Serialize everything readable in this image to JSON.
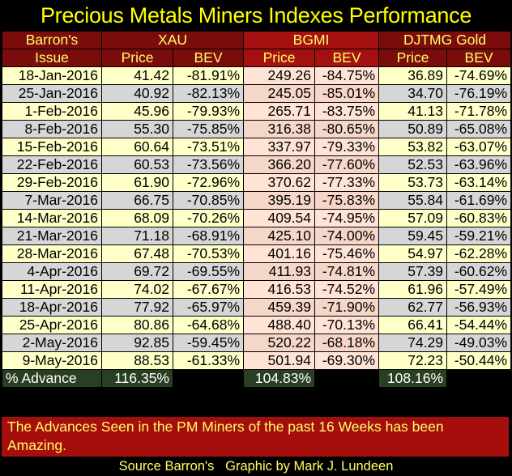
{
  "title": "Precious Metals Miners Indexes Performance",
  "header": {
    "col1_line1": "Barron's",
    "col1_line2": "Issue",
    "groups": [
      "XAU",
      "BGMI",
      "DJTMG Gold"
    ],
    "sub": [
      "Price",
      "BEV",
      "Price",
      "BEV",
      "Price",
      "BEV"
    ]
  },
  "rows": [
    [
      "18-Jan-2016",
      "41.42",
      "-81.91%",
      "249.26",
      "-84.75%",
      "36.89",
      "-74.69%"
    ],
    [
      "25-Jan-2016",
      "40.92",
      "-82.13%",
      "245.05",
      "-85.01%",
      "34.70",
      "-76.19%"
    ],
    [
      "1-Feb-2016",
      "45.96",
      "-79.93%",
      "265.71",
      "-83.75%",
      "41.13",
      "-71.78%"
    ],
    [
      "8-Feb-2016",
      "55.30",
      "-75.85%",
      "316.38",
      "-80.65%",
      "50.89",
      "-65.08%"
    ],
    [
      "15-Feb-2016",
      "60.64",
      "-73.51%",
      "337.97",
      "-79.33%",
      "53.82",
      "-63.07%"
    ],
    [
      "22-Feb-2016",
      "60.53",
      "-73.56%",
      "366.20",
      "-77.60%",
      "52.53",
      "-63.96%"
    ],
    [
      "29-Feb-2016",
      "61.90",
      "-72.96%",
      "370.62",
      "-77.33%",
      "53.73",
      "-63.14%"
    ],
    [
      "7-Mar-2016",
      "66.75",
      "-70.85%",
      "395.19",
      "-75.83%",
      "55.84",
      "-61.69%"
    ],
    [
      "14-Mar-2016",
      "68.09",
      "-70.26%",
      "409.54",
      "-74.95%",
      "57.09",
      "-60.83%"
    ],
    [
      "21-Mar-2016",
      "71.18",
      "-68.91%",
      "425.10",
      "-74.00%",
      "59.45",
      "-59.21%"
    ],
    [
      "28-Mar-2016",
      "67.48",
      "-70.53%",
      "401.16",
      "-75.46%",
      "54.97",
      "-62.28%"
    ],
    [
      "4-Apr-2016",
      "69.72",
      "-69.55%",
      "411.93",
      "-74.81%",
      "57.39",
      "-60.62%"
    ],
    [
      "11-Apr-2016",
      "74.02",
      "-67.67%",
      "416.53",
      "-74.52%",
      "61.96",
      "-57.49%"
    ],
    [
      "18-Apr-2016",
      "77.92",
      "-65.97%",
      "459.39",
      "-71.90%",
      "62.77",
      "-56.93%"
    ],
    [
      "25-Apr-2016",
      "80.86",
      "-64.68%",
      "488.40",
      "-70.13%",
      "66.41",
      "-54.44%"
    ],
    [
      "2-May-2016",
      "92.85",
      "-59.45%",
      "520.22",
      "-68.18%",
      "74.29",
      "-49.03%"
    ],
    [
      "9-May-2016",
      "88.53",
      "-61.33%",
      "501.94",
      "-69.30%",
      "72.23",
      "-50.44%"
    ]
  ],
  "advance": {
    "label": "% Advance",
    "xau": "116.35%",
    "bgmi": "104.83%",
    "djtmg": "108.16%"
  },
  "note": "The Advances Seen in the PM Miners of the past 16 Weeks has been Amazing.",
  "source": "Source Barron's   Graphic by Mark J. Lundeen",
  "colors": {
    "background": "#000000",
    "title": "#ffff00",
    "header_bg": "#7b0c0c",
    "row_light": "#ffffc8",
    "row_gray": "#d6d6d6",
    "advance_bg": "#293f23",
    "note_bg": "#a60d0d"
  }
}
